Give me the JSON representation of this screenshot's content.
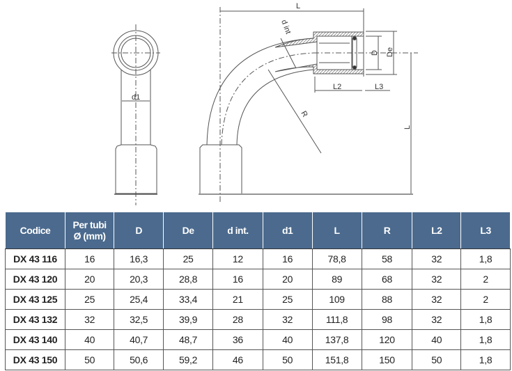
{
  "drawing": {
    "labels": {
      "d1": "d1",
      "L_top": "L",
      "d_int": "d int",
      "D": "D",
      "De": "De",
      "L2": "L2",
      "L3": "L3",
      "R": "R",
      "L_side": "L"
    }
  },
  "table": {
    "headers": [
      "Codice",
      "Per tubi Ø (mm)",
      "D",
      "De",
      "d int.",
      "d1",
      "L",
      "R",
      "L2",
      "L3"
    ],
    "header_lines": {
      "per_tubi_1": "Per tubi",
      "per_tubi_2": "Ø (mm)"
    },
    "header_color": "#4b6a8e",
    "rows": [
      [
        "DX 43 116",
        "16",
        "16,3",
        "25",
        "12",
        "16",
        "78,8",
        "58",
        "32",
        "1,8"
      ],
      [
        "DX 43 120",
        "20",
        "20,3",
        "28,8",
        "16",
        "20",
        "89",
        "68",
        "32",
        "2"
      ],
      [
        "DX 43 125",
        "25",
        "25,4",
        "33,4",
        "21",
        "25",
        "109",
        "88",
        "32",
        "2"
      ],
      [
        "DX 43 132",
        "32",
        "32,5",
        "39,9",
        "28",
        "32",
        "111,8",
        "98",
        "32",
        "1,8"
      ],
      [
        "DX 43 140",
        "40",
        "40,7",
        "48,7",
        "36",
        "40",
        "137,8",
        "120",
        "40",
        "1,8"
      ],
      [
        "DX 43 150",
        "50",
        "50,6",
        "59,2",
        "46",
        "50",
        "151,8",
        "150",
        "50",
        "1,8"
      ]
    ]
  }
}
